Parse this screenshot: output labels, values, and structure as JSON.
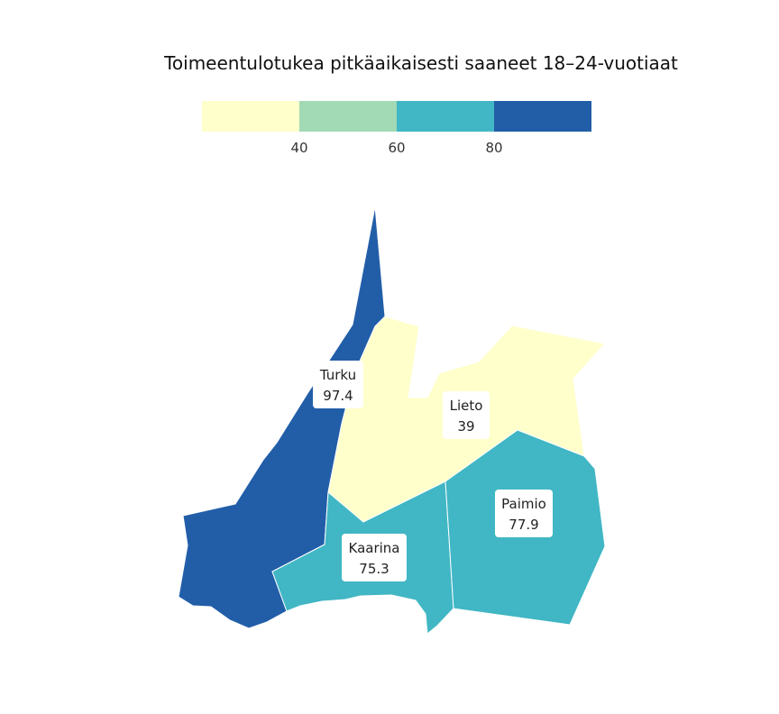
{
  "title": "Toimeentulotukea pitkäaikaisesti saaneet 18–24-vuotiaat",
  "legend": {
    "colors": [
      "#ffffcc",
      "#a1dab4",
      "#41b6c4",
      "#225ea8"
    ],
    "ticks": [
      "40",
      "60",
      "80"
    ]
  },
  "regions": [
    {
      "name": "Turku",
      "value": "97.4",
      "color": "#225ea8"
    },
    {
      "name": "Lieto",
      "value": "39",
      "color": "#ffffcc"
    },
    {
      "name": "Kaarina",
      "value": "75.3",
      "color": "#41b6c4"
    },
    {
      "name": "Paimio",
      "value": "77.9",
      "color": "#41b6c4"
    }
  ]
}
